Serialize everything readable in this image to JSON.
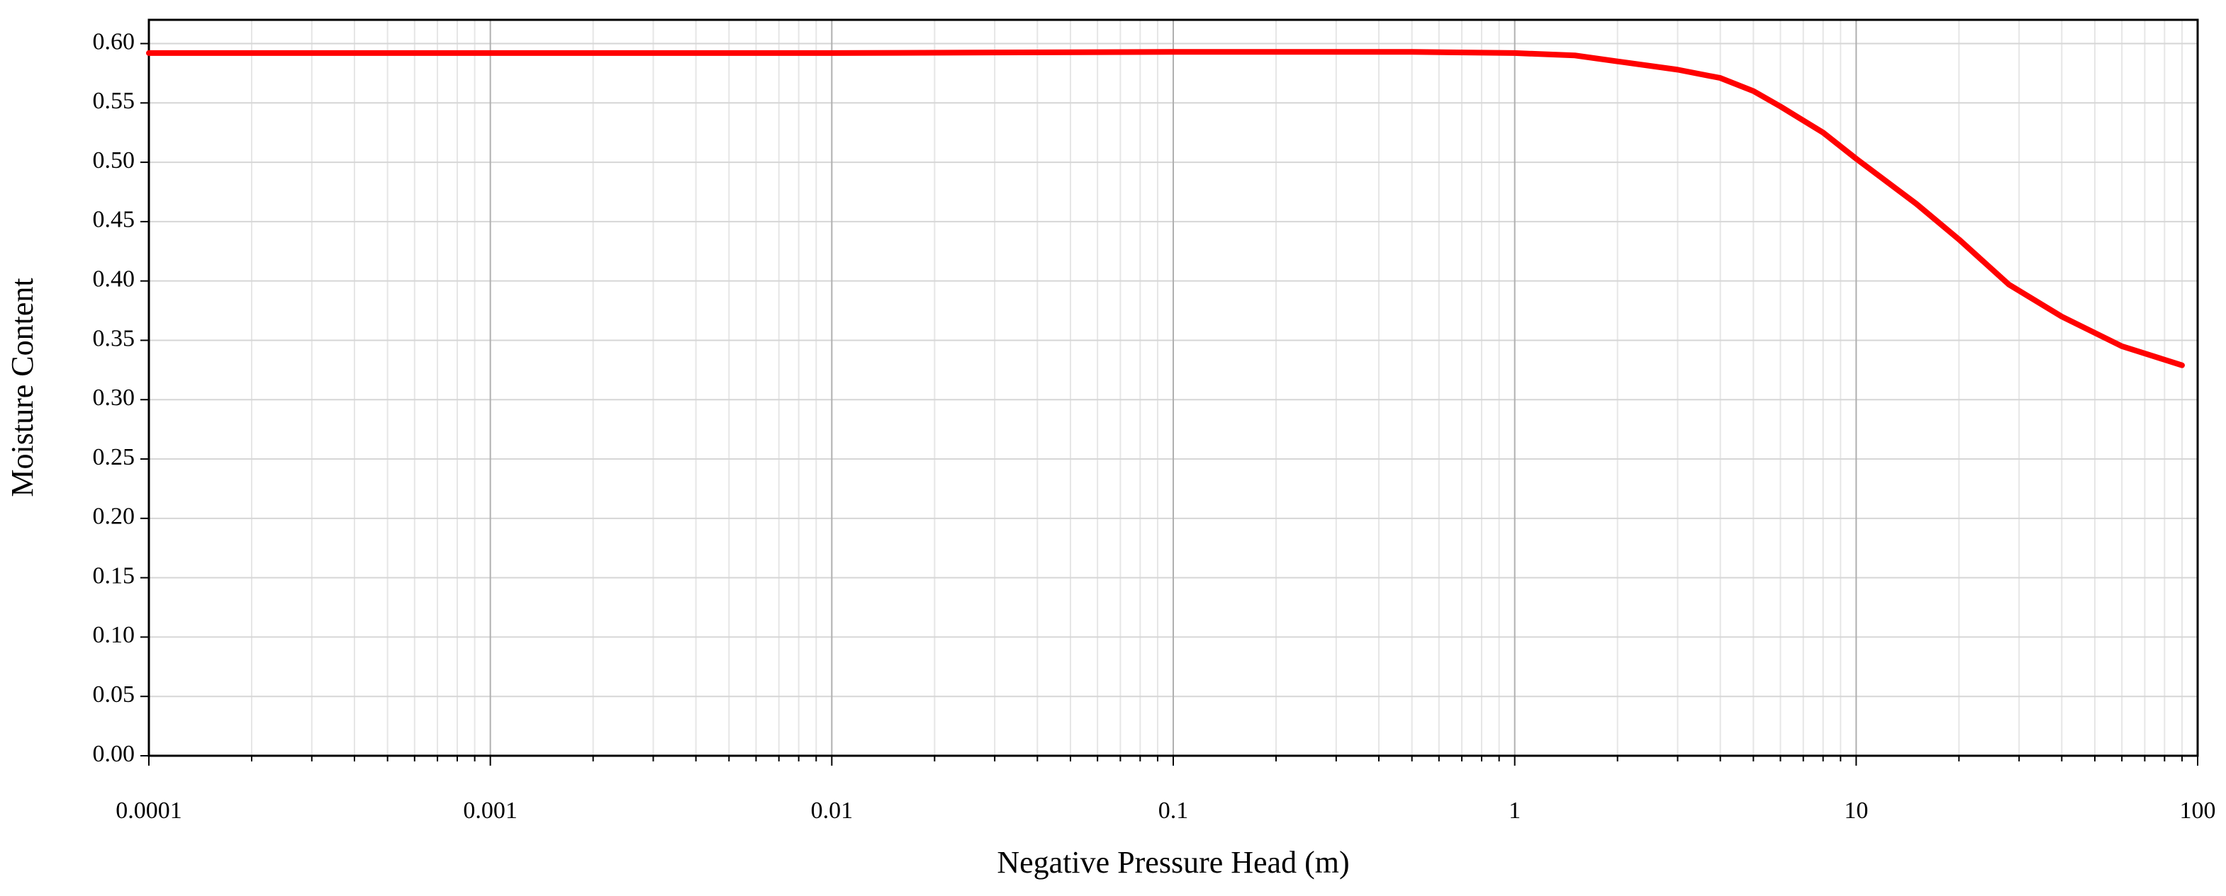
{
  "chart_data": {
    "type": "line",
    "x_label": "Negative Pressure Head (m)",
    "y_label": "Moisture Content",
    "x": [
      0.0001,
      0.001,
      0.01,
      0.1,
      0.5,
      1,
      1.5,
      2,
      3,
      4,
      5,
      6,
      8,
      10,
      15,
      20,
      28,
      40,
      60,
      90
    ],
    "values": [
      0.592,
      0.592,
      0.592,
      0.593,
      0.593,
      0.592,
      0.59,
      0.585,
      0.578,
      0.571,
      0.56,
      0.547,
      0.525,
      0.503,
      0.465,
      0.435,
      0.397,
      0.37,
      0.345,
      0.329
    ],
    "color": "#ff0000",
    "xscale": "log",
    "xlim": [
      0.0001,
      100
    ],
    "xticks": [
      0.0001,
      0.001,
      0.01,
      0.1,
      1,
      10,
      100
    ],
    "ylim": [
      0,
      0.62
    ],
    "yticks": [
      {
        "value": 0,
        "label": "0.00"
      },
      {
        "value": 0.05,
        "label": "0.05"
      },
      {
        "value": 0.1,
        "label": "0.10"
      },
      {
        "value": 0.15,
        "label": "0.15"
      },
      {
        "value": 0.2,
        "label": "0.20"
      },
      {
        "value": 0.25,
        "label": "0.25"
      },
      {
        "value": 0.3,
        "label": "0.30"
      },
      {
        "value": 0.35,
        "label": "0.35"
      },
      {
        "value": 0.4,
        "label": "0.40"
      },
      {
        "value": 0.45,
        "label": "0.45"
      },
      {
        "value": 0.5,
        "label": "0.50"
      },
      {
        "value": 0.55,
        "label": "0.55"
      },
      {
        "value": 0.6,
        "label": "0.60"
      }
    ],
    "grid": true
  }
}
